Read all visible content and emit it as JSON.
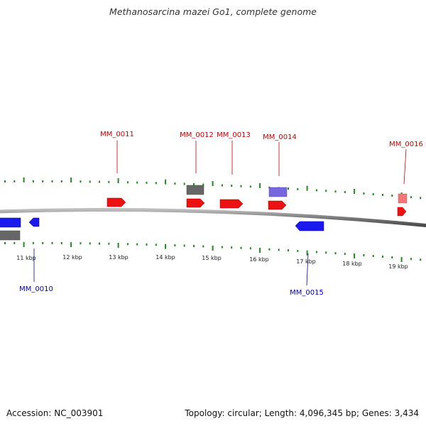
{
  "title": "Methanosarcina mazei Go1, complete genome",
  "footer": {
    "accession": "Accession: NC_003901",
    "summary": "Topology: circular; Length: 4,096,345 bp; Genes: 3,434"
  },
  "colors": {
    "forward": "#ee1111",
    "reverse": "#1a1aee",
    "forward_label": "#cc0000",
    "reverse_label": "#0000bb",
    "gray": "#666666",
    "purple": "#7766dd",
    "pink": "#ee7777",
    "tick": "#228822",
    "backbone": "#8a8a8a"
  },
  "kbp_labels": [
    "11 kbp",
    "12 kbp",
    "13 kbp",
    "14 kbp",
    "15 kbp",
    "16 kbp",
    "17 kbp",
    "18 kbp",
    "19 kbp"
  ],
  "gene_labels": [
    {
      "text": "MM_0010",
      "strand": "reverse"
    },
    {
      "text": "MM_0011",
      "strand": "forward"
    },
    {
      "text": "MM_0012",
      "strand": "forward"
    },
    {
      "text": "MM_0013",
      "strand": "forward"
    },
    {
      "text": "MM_0014",
      "strand": "forward"
    },
    {
      "text": "MM_0015",
      "strand": "reverse"
    },
    {
      "text": "MM_0016",
      "strand": "forward"
    }
  ]
}
